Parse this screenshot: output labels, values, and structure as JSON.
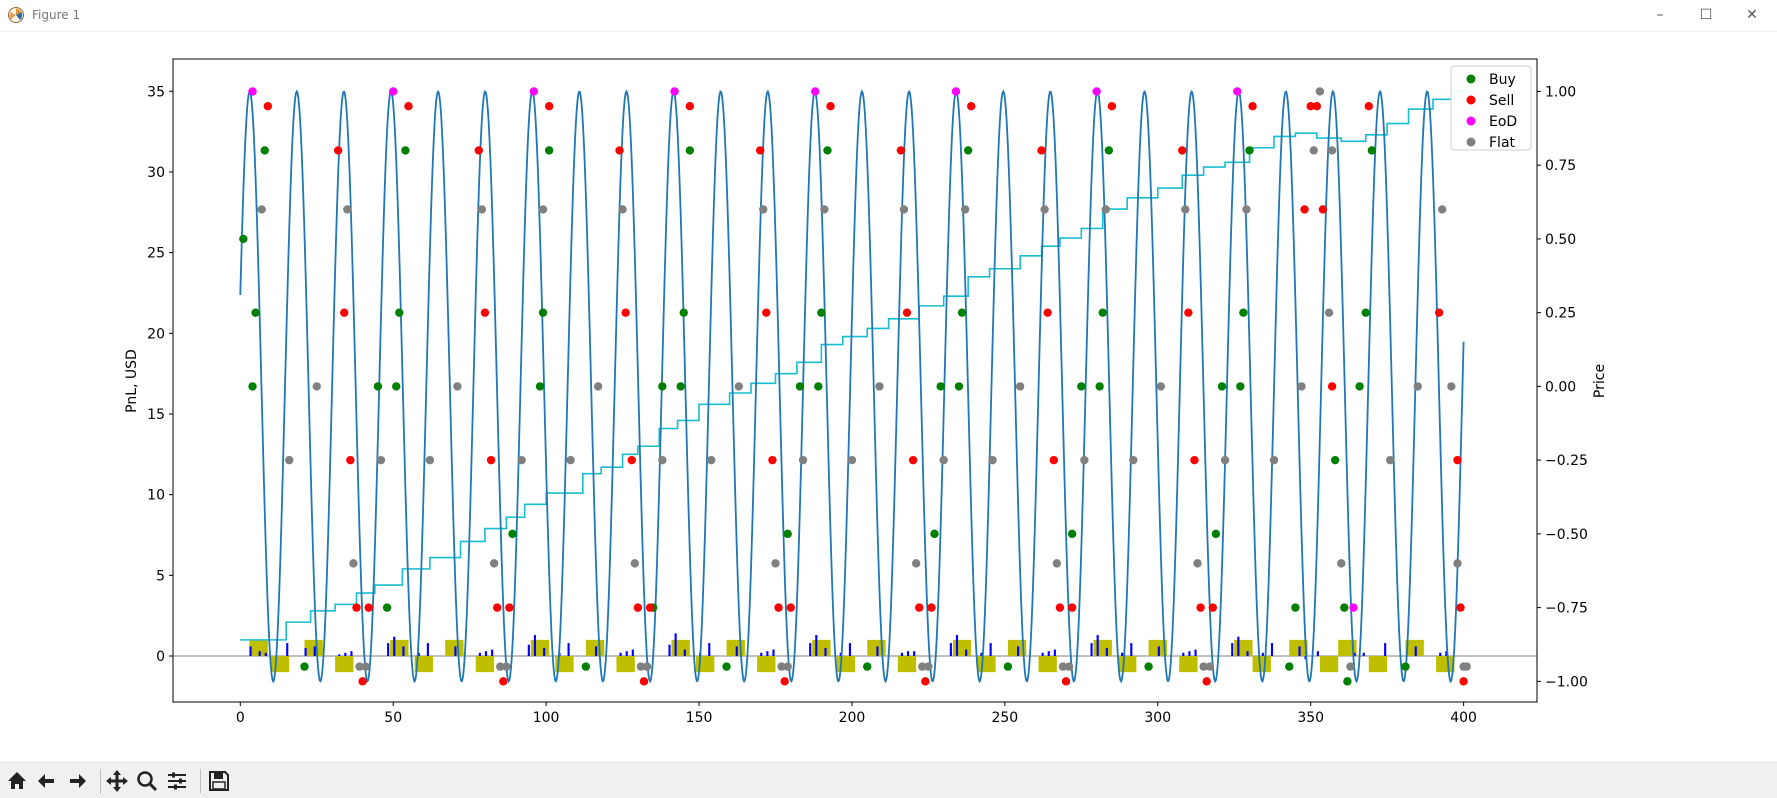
{
  "window": {
    "title": "Figure 1",
    "minimize_glyph": "–",
    "maximize_glyph": "☐",
    "close_glyph": "✕"
  },
  "toolbar": {
    "buttons": [
      "home-icon",
      "back-icon",
      "forward-icon",
      "pan-icon",
      "zoom-icon",
      "configure-subplots-icon",
      "save-icon"
    ]
  },
  "colors": {
    "price": "#1f77b4",
    "pnl": "#17becf",
    "buy": "#008000",
    "sell": "#ff0000",
    "eod": "#ff00ff",
    "flat": "#808080",
    "position_bar": "#bfbf00",
    "volume_bar": "#0000ff"
  },
  "chart_data": {
    "type": "line",
    "xlim": [
      -22,
      424
    ],
    "xticks": [
      "0",
      "50",
      "100",
      "150",
      "200",
      "250",
      "300",
      "350",
      "400"
    ],
    "xtick_values": [
      0,
      50,
      100,
      150,
      200,
      250,
      300,
      350,
      400
    ],
    "left_axis": {
      "label": "PnL, USD",
      "ylim": [
        -2.85,
        37.0
      ],
      "ticks": [
        "0",
        "5",
        "10",
        "15",
        "20",
        "25",
        "30",
        "35"
      ],
      "tick_values": [
        0,
        5,
        10,
        15,
        20,
        25,
        30,
        35
      ]
    },
    "right_axis": {
      "label": "Price",
      "ylim": [
        -1.07,
        1.11
      ],
      "ticks": [
        "1.00",
        "0.75",
        "0.50",
        "0.25",
        "0.00",
        "−0.25",
        "−0.50",
        "−0.75",
        "−1.00"
      ],
      "tick_values": [
        1.0,
        0.75,
        0.5,
        0.25,
        0.0,
        -0.25,
        -0.5,
        -0.75,
        -1.0
      ]
    },
    "legend": {
      "placement": "upper right",
      "entries": [
        {
          "label": "Buy",
          "color": "#008000"
        },
        {
          "label": "Sell",
          "color": "#ff0000"
        },
        {
          "label": "EoD",
          "color": "#ff00ff"
        },
        {
          "label": "Flat",
          "color": "#808080"
        }
      ]
    },
    "price_series": {
      "axis": "right",
      "period": 15.4,
      "start_price": 0.31,
      "x_range": [
        0,
        400
      ]
    },
    "pnl_series": {
      "axis": "left",
      "x": [
        0,
        15,
        23,
        31,
        38,
        44,
        53,
        62,
        72,
        80,
        87,
        93,
        100,
        112,
        118,
        125,
        130,
        137,
        143,
        150,
        160,
        167,
        175,
        182,
        190,
        197,
        205,
        212,
        222,
        230,
        238,
        245,
        255,
        262,
        268,
        275,
        282,
        290,
        300,
        308,
        315,
        322,
        330,
        338,
        345,
        352,
        360,
        368,
        375,
        382,
        390,
        397,
        400
      ],
      "y": [
        1.0,
        2.1,
        2.8,
        3.2,
        3.9,
        4.4,
        5.4,
        6.1,
        7.1,
        7.9,
        8.6,
        9.4,
        10.1,
        11.3,
        11.7,
        12.5,
        13.0,
        14.1,
        14.6,
        15.6,
        16.3,
        16.9,
        17.5,
        18.2,
        19.3,
        19.8,
        20.3,
        20.9,
        21.7,
        22.3,
        23.5,
        24.0,
        24.8,
        25.4,
        25.9,
        26.5,
        27.7,
        28.4,
        29.0,
        29.8,
        30.3,
        30.6,
        31.5,
        32.2,
        32.4,
        32.1,
        31.9,
        32.3,
        33.0,
        33.9,
        34.5,
        35.0,
        34.9
      ]
    },
    "markers": {
      "axis": "right",
      "buy": [
        [
          1,
          0.5
        ],
        [
          4,
          0
        ],
        [
          5,
          0.25
        ],
        [
          8,
          0.8
        ],
        [
          21,
          -0.95
        ],
        [
          45,
          0
        ],
        [
          48,
          -0.75
        ],
        [
          51,
          0
        ],
        [
          52,
          0.25
        ],
        [
          54,
          0.8
        ],
        [
          89,
          -0.5
        ],
        [
          98,
          0
        ],
        [
          99,
          0.25
        ],
        [
          101,
          0.8
        ],
        [
          113,
          -0.95
        ],
        [
          135,
          -0.75
        ],
        [
          138,
          0
        ],
        [
          144,
          0
        ],
        [
          145,
          0.25
        ],
        [
          147,
          0.8
        ],
        [
          159,
          -0.95
        ],
        [
          179,
          -0.5
        ],
        [
          183,
          0
        ],
        [
          189,
          0
        ],
        [
          190,
          0.25
        ],
        [
          192,
          0.8
        ],
        [
          205,
          -0.95
        ],
        [
          227,
          -0.5
        ],
        [
          229,
          0
        ],
        [
          235,
          0
        ],
        [
          236,
          0.25
        ],
        [
          238,
          0.8
        ],
        [
          251,
          -0.95
        ],
        [
          272,
          -0.5
        ],
        [
          275,
          0
        ],
        [
          281,
          0
        ],
        [
          282,
          0.25
        ],
        [
          284,
          0.8
        ],
        [
          297,
          -0.95
        ],
        [
          319,
          -0.5
        ],
        [
          321,
          0
        ],
        [
          327,
          0
        ],
        [
          328,
          0.25
        ],
        [
          330,
          0.8
        ],
        [
          343,
          -0.95
        ],
        [
          345,
          -0.75
        ],
        [
          358,
          -0.25
        ],
        [
          361,
          -0.75
        ],
        [
          366,
          0
        ],
        [
          368,
          0.25
        ],
        [
          370,
          0.8
        ],
        [
          381,
          -0.95
        ],
        [
          362,
          -1.0
        ]
      ],
      "sell": [
        [
          9,
          0.95
        ],
        [
          32,
          0.8
        ],
        [
          34,
          0.25
        ],
        [
          36,
          -0.25
        ],
        [
          38,
          -0.75
        ],
        [
          40,
          -1.0
        ],
        [
          42,
          -0.75
        ],
        [
          55,
          0.95
        ],
        [
          78,
          0.8
        ],
        [
          80,
          0.25
        ],
        [
          82,
          -0.25
        ],
        [
          84,
          -0.75
        ],
        [
          86,
          -1.0
        ],
        [
          88,
          -0.75
        ],
        [
          101,
          0.95
        ],
        [
          124,
          0.8
        ],
        [
          126,
          0.25
        ],
        [
          128,
          -0.25
        ],
        [
          130,
          -0.75
        ],
        [
          132,
          -1.0
        ],
        [
          134,
          -0.75
        ],
        [
          147,
          0.95
        ],
        [
          170,
          0.8
        ],
        [
          172,
          0.25
        ],
        [
          174,
          -0.25
        ],
        [
          176,
          -0.75
        ],
        [
          178,
          -1.0
        ],
        [
          180,
          -0.75
        ],
        [
          193,
          0.95
        ],
        [
          216,
          0.8
        ],
        [
          218,
          0.25
        ],
        [
          220,
          -0.25
        ],
        [
          222,
          -0.75
        ],
        [
          224,
          -1.0
        ],
        [
          226,
          -0.75
        ],
        [
          239,
          0.95
        ],
        [
          262,
          0.8
        ],
        [
          264,
          0.25
        ],
        [
          266,
          -0.25
        ],
        [
          268,
          -0.75
        ],
        [
          270,
          -1.0
        ],
        [
          272,
          -0.75
        ],
        [
          285,
          0.95
        ],
        [
          308,
          0.8
        ],
        [
          310,
          0.25
        ],
        [
          312,
          -0.25
        ],
        [
          314,
          -0.75
        ],
        [
          316,
          -1.0
        ],
        [
          318,
          -0.75
        ],
        [
          331,
          0.95
        ],
        [
          350,
          0.95
        ],
        [
          352,
          0.95
        ],
        [
          348,
          0.6
        ],
        [
          354,
          0.6
        ],
        [
          357,
          0.0
        ],
        [
          369,
          0.95
        ],
        [
          392,
          0.25
        ],
        [
          398,
          -0.25
        ],
        [
          399,
          -0.75
        ],
        [
          400,
          -1.0
        ]
      ],
      "eod": [
        [
          4,
          1.0
        ],
        [
          50,
          1.0
        ],
        [
          96,
          1.0
        ],
        [
          142,
          1.0
        ],
        [
          188,
          1.0
        ],
        [
          234,
          1.0
        ],
        [
          280,
          1.0
        ],
        [
          326,
          1.0
        ],
        [
          364,
          -0.75
        ]
      ],
      "flat": [
        [
          7,
          0.6
        ],
        [
          16,
          -0.25
        ],
        [
          25,
          0
        ],
        [
          35,
          0.6
        ],
        [
          37,
          -0.6
        ],
        [
          39,
          -0.95
        ],
        [
          41,
          -0.95
        ],
        [
          46,
          -0.25
        ],
        [
          62,
          -0.25
        ],
        [
          71,
          0
        ],
        [
          79,
          0.6
        ],
        [
          83,
          -0.6
        ],
        [
          85,
          -0.95
        ],
        [
          87,
          -0.95
        ],
        [
          92,
          -0.25
        ],
        [
          99,
          0.6
        ],
        [
          108,
          -0.25
        ],
        [
          117,
          0
        ],
        [
          125,
          0.6
        ],
        [
          129,
          -0.6
        ],
        [
          131,
          -0.95
        ],
        [
          133,
          -0.95
        ],
        [
          138,
          -0.25
        ],
        [
          154,
          -0.25
        ],
        [
          163,
          0
        ],
        [
          171,
          0.6
        ],
        [
          175,
          -0.6
        ],
        [
          177,
          -0.95
        ],
        [
          179,
          -0.95
        ],
        [
          184,
          -0.25
        ],
        [
          191,
          0.6
        ],
        [
          200,
          -0.25
        ],
        [
          209,
          0
        ],
        [
          217,
          0.6
        ],
        [
          221,
          -0.6
        ],
        [
          223,
          -0.95
        ],
        [
          225,
          -0.95
        ],
        [
          230,
          -0.25
        ],
        [
          237,
          0.6
        ],
        [
          246,
          -0.25
        ],
        [
          255,
          0
        ],
        [
          263,
          0.6
        ],
        [
          267,
          -0.6
        ],
        [
          269,
          -0.95
        ],
        [
          271,
          -0.95
        ],
        [
          276,
          -0.25
        ],
        [
          283,
          0.6
        ],
        [
          292,
          -0.25
        ],
        [
          301,
          0
        ],
        [
          309,
          0.6
        ],
        [
          313,
          -0.6
        ],
        [
          315,
          -0.95
        ],
        [
          317,
          -0.95
        ],
        [
          322,
          -0.25
        ],
        [
          329,
          0.6
        ],
        [
          338,
          -0.25
        ],
        [
          347,
          0
        ],
        [
          351,
          0.8
        ],
        [
          353,
          1.0
        ],
        [
          356,
          0.25
        ],
        [
          360,
          -0.6
        ],
        [
          363,
          -0.95
        ],
        [
          376,
          -0.25
        ],
        [
          385,
          0
        ],
        [
          393,
          0.6
        ],
        [
          396,
          0
        ],
        [
          398,
          -0.6
        ],
        [
          400,
          -0.95
        ],
        [
          401,
          -0.95
        ],
        [
          357,
          0.8
        ]
      ]
    },
    "position_bars": {
      "axis": "left",
      "width": 6,
      "bars": [
        [
          3,
          1.0
        ],
        [
          10,
          -1.0
        ],
        [
          21,
          1.0
        ],
        [
          31,
          -1.0
        ],
        [
          49,
          1.0
        ],
        [
          57,
          -1.0
        ],
        [
          67,
          1.0
        ],
        [
          77,
          -1.0
        ],
        [
          95,
          1.0
        ],
        [
          103,
          -1.0
        ],
        [
          113,
          1.0
        ],
        [
          123,
          -1.0
        ],
        [
          141,
          1.0
        ],
        [
          149,
          -1.0
        ],
        [
          159,
          1.0
        ],
        [
          169,
          -1.0
        ],
        [
          187,
          1.0
        ],
        [
          195,
          -1.0
        ],
        [
          205,
          1.0
        ],
        [
          215,
          -1.0
        ],
        [
          233,
          1.0
        ],
        [
          241,
          -1.0
        ],
        [
          251,
          1.0
        ],
        [
          261,
          -1.0
        ],
        [
          279,
          1.0
        ],
        [
          287,
          -1.0
        ],
        [
          297,
          1.0
        ],
        [
          307,
          -1.0
        ],
        [
          325,
          1.0
        ],
        [
          331,
          -1.0
        ],
        [
          343,
          1.0
        ],
        [
          353,
          -1.0
        ],
        [
          359,
          1.0
        ],
        [
          369,
          -1.0
        ],
        [
          381,
          1.0
        ],
        [
          391,
          -1.0
        ]
      ]
    },
    "volume_bars": {
      "axis": "left",
      "width": 0.7,
      "bars": [
        [
          3,
          0.6
        ],
        [
          6,
          0.3
        ],
        [
          8,
          0.2
        ],
        [
          15,
          0.8
        ],
        [
          21,
          0.5
        ],
        [
          24,
          0.6
        ],
        [
          32,
          0.1
        ],
        [
          34,
          0.2
        ],
        [
          36,
          0.3
        ],
        [
          48,
          0.8
        ],
        [
          50,
          1.2
        ],
        [
          53,
          0.6
        ],
        [
          58,
          0.2
        ],
        [
          61,
          0.8
        ],
        [
          70,
          0.6
        ],
        [
          78,
          0.2
        ],
        [
          80,
          0.3
        ],
        [
          82,
          0.4
        ],
        [
          94,
          0.7
        ],
        [
          96,
          1.3
        ],
        [
          99,
          0.5
        ],
        [
          104,
          0.2
        ],
        [
          107,
          0.8
        ],
        [
          116,
          0.6
        ],
        [
          124,
          0.2
        ],
        [
          126,
          0.3
        ],
        [
          128,
          0.4
        ],
        [
          140,
          0.7
        ],
        [
          142,
          1.4
        ],
        [
          145,
          0.4
        ],
        [
          150,
          0.2
        ],
        [
          153,
          0.8
        ],
        [
          162,
          0.6
        ],
        [
          170,
          0.2
        ],
        [
          172,
          0.3
        ],
        [
          174,
          0.4
        ],
        [
          186,
          0.8
        ],
        [
          188,
          1.3
        ],
        [
          191,
          0.5
        ],
        [
          196,
          0.2
        ],
        [
          199,
          0.8
        ],
        [
          208,
          0.6
        ],
        [
          216,
          0.2
        ],
        [
          218,
          0.3
        ],
        [
          220,
          0.3
        ],
        [
          232,
          0.8
        ],
        [
          234,
          1.3
        ],
        [
          237,
          0.4
        ],
        [
          242,
          0.2
        ],
        [
          245,
          0.8
        ],
        [
          254,
          0.6
        ],
        [
          262,
          0.2
        ],
        [
          264,
          0.3
        ],
        [
          266,
          0.4
        ],
        [
          278,
          0.8
        ],
        [
          280,
          1.3
        ],
        [
          283,
          0.5
        ],
        [
          288,
          0.2
        ],
        [
          291,
          0.8
        ],
        [
          300,
          0.6
        ],
        [
          308,
          0.2
        ],
        [
          310,
          0.3
        ],
        [
          312,
          0.4
        ],
        [
          324,
          0.8
        ],
        [
          326,
          1.2
        ],
        [
          329,
          0.3
        ],
        [
          334,
          0.2
        ],
        [
          337,
          0.8
        ],
        [
          346,
          0.6
        ],
        [
          348,
          -0.2
        ],
        [
          352,
          0.3
        ],
        [
          364,
          0.2
        ],
        [
          367,
          0.2
        ],
        [
          374,
          0.8
        ],
        [
          384,
          0.6
        ],
        [
          392,
          0.2
        ],
        [
          394,
          0.3
        ]
      ]
    }
  }
}
